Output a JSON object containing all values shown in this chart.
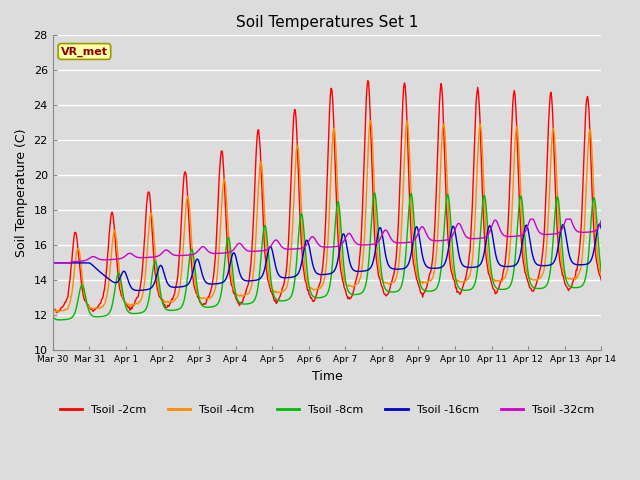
{
  "title": "Soil Temperatures Set 1",
  "xlabel": "Time",
  "ylabel": "Soil Temperature (C)",
  "ylim": [
    10,
    28
  ],
  "xlim": [
    0,
    15
  ],
  "background_color": "#dcdcdc",
  "plot_bg_color": "#dcdcdc",
  "grid_color": "white",
  "annotation_text": "VR_met",
  "annotation_bg": "#ffffaa",
  "annotation_edge": "#999900",
  "annotation_text_color": "#8B0000",
  "series_colors": {
    "Tsoil -2cm": "#ff0000",
    "Tsoil -4cm": "#ff8c00",
    "Tsoil -8cm": "#00bb00",
    "Tsoil -16cm": "#0000cc",
    "Tsoil -32cm": "#cc00cc"
  },
  "xtick_labels": [
    "Mar 30",
    "Mar 31",
    "Apr 1",
    "Apr 2",
    "Apr 3",
    "Apr 4",
    "Apr 5",
    "Apr 6",
    "Apr 7",
    "Apr 8",
    "Apr 9",
    "Apr 10",
    "Apr 11",
    "Apr 12",
    "Apr 13",
    "Apr 14"
  ],
  "xtick_positions": [
    0,
    1,
    2,
    3,
    4,
    5,
    6,
    7,
    8,
    9,
    10,
    11,
    12,
    13,
    14,
    15
  ],
  "ytick_positions": [
    10,
    12,
    14,
    16,
    18,
    20,
    22,
    24,
    26,
    28
  ]
}
